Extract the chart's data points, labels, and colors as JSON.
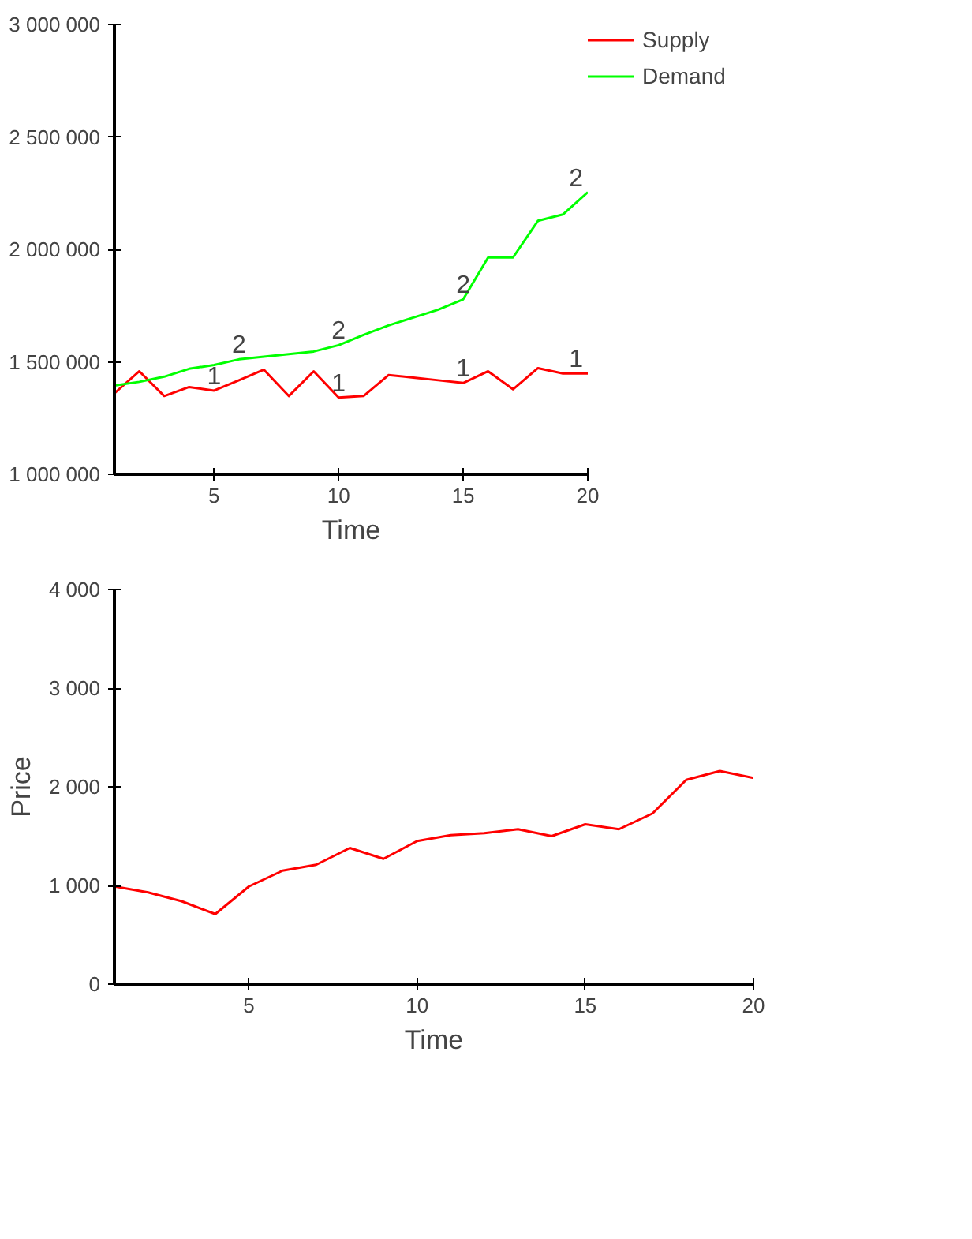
{
  "chart_data": [
    {
      "type": "line",
      "xlabel": "Time",
      "x": [
        1,
        2,
        3,
        4,
        5,
        6,
        7,
        8,
        9,
        10,
        11,
        12,
        13,
        14,
        15,
        16,
        17,
        18,
        19,
        20
      ],
      "series": [
        {
          "name": "Supply",
          "color": "#ff0000",
          "values": [
            1360000,
            1458000,
            1348000,
            1388000,
            1372000,
            1418000,
            1465000,
            1348000,
            1458000,
            1341000,
            1348000,
            1441000,
            1430000,
            1418000,
            1406000,
            1458000,
            1378000,
            1472000,
            1448000,
            1448000
          ]
        },
        {
          "name": "Demand",
          "color": "#00ff00",
          "values": [
            1395000,
            1411000,
            1434000,
            1469000,
            1486000,
            1511000,
            1523000,
            1534000,
            1546000,
            1574000,
            1620000,
            1662000,
            1697000,
            1732000,
            1778000,
            1964000,
            1964000,
            2127000,
            2155000,
            2254000
          ]
        }
      ],
      "annotations": [
        {
          "text": "1",
          "x": 5,
          "y": 1372000
        },
        {
          "text": "1",
          "x": 10,
          "y": 1341000
        },
        {
          "text": "1",
          "x": 15,
          "y": 1406000
        },
        {
          "text": "1",
          "x": 20,
          "y": 1448000
        },
        {
          "text": "2",
          "x": 6,
          "y": 1511000
        },
        {
          "text": "2",
          "x": 10,
          "y": 1574000
        },
        {
          "text": "2",
          "x": 15,
          "y": 1778000
        },
        {
          "text": "2",
          "x": 20,
          "y": 2254000
        }
      ],
      "xlim": [
        1,
        20
      ],
      "xticks": [
        5,
        10,
        15,
        20
      ],
      "ylim": [
        1000000,
        3000000
      ],
      "yticks": [
        {
          "value": 1000000,
          "label": "1 000 000"
        },
        {
          "value": 1500000,
          "label": "1 500 000"
        },
        {
          "value": 2000000,
          "label": "2 000 000"
        },
        {
          "value": 2500000,
          "label": "2 500 000"
        },
        {
          "value": 3000000,
          "label": "3 000 000"
        }
      ],
      "grid": false,
      "legend": "right"
    },
    {
      "type": "line",
      "xlabel": "Time",
      "ylabel": "Price",
      "x": [
        1,
        2,
        3,
        4,
        5,
        6,
        7,
        8,
        9,
        10,
        11,
        12,
        13,
        14,
        15,
        16,
        17,
        18,
        19,
        20
      ],
      "series": [
        {
          "color": "#ff0000",
          "values": [
            990,
            930,
            840,
            710,
            990,
            1150,
            1210,
            1380,
            1270,
            1450,
            1510,
            1530,
            1570,
            1500,
            1620,
            1570,
            1730,
            2070,
            2160,
            2090
          ]
        }
      ],
      "xlim": [
        1,
        20
      ],
      "xticks": [
        5,
        10,
        15,
        20
      ],
      "ylim": [
        0,
        4000
      ],
      "yticks": [
        0,
        {
          "value": 1000,
          "label": "1 000"
        },
        {
          "value": 2000,
          "label": "2 000"
        },
        {
          "value": 3000,
          "label": "3 000"
        },
        {
          "value": 4000,
          "label": "4 000"
        }
      ],
      "grid": false
    }
  ]
}
